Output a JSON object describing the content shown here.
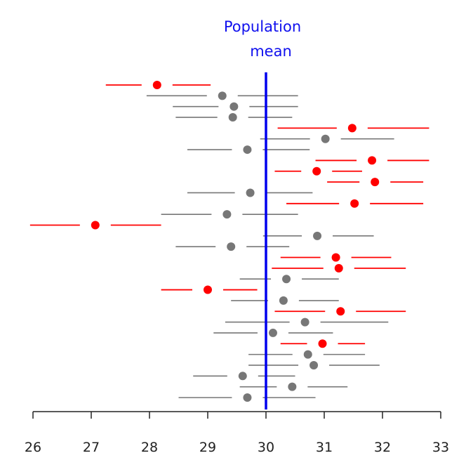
{
  "chart_data": {
    "type": "scatter",
    "annotation": [
      "Population",
      "mean"
    ],
    "reference_line": {
      "x": 30,
      "color": "#0000ee"
    },
    "xlim": [
      26,
      33
    ],
    "xticks": [
      26,
      27,
      28,
      29,
      30,
      31,
      32,
      33
    ],
    "xticklabels": [
      "26",
      "27",
      "28",
      "29",
      "30",
      "31",
      "32",
      "33"
    ],
    "colors": {
      "covers_mean": "#777777",
      "misses_mean": "#ff0000"
    },
    "intervals": [
      {
        "estimate": 28.13,
        "lower": 27.25,
        "upper": 29.05,
        "covers_mean": false
      },
      {
        "estimate": 29.25,
        "lower": 27.95,
        "upper": 30.55,
        "covers_mean": true
      },
      {
        "estimate": 29.45,
        "lower": 28.4,
        "upper": 30.55,
        "covers_mean": true
      },
      {
        "estimate": 29.43,
        "lower": 28.45,
        "upper": 30.45,
        "covers_mean": true
      },
      {
        "estimate": 31.48,
        "lower": 30.2,
        "upper": 32.8,
        "covers_mean": false
      },
      {
        "estimate": 31.02,
        "lower": 29.9,
        "upper": 32.2,
        "covers_mean": true
      },
      {
        "estimate": 29.68,
        "lower": 28.65,
        "upper": 30.75,
        "covers_mean": true
      },
      {
        "estimate": 31.82,
        "lower": 30.85,
        "upper": 32.8,
        "covers_mean": false
      },
      {
        "estimate": 30.87,
        "lower": 30.15,
        "upper": 31.65,
        "covers_mean": false
      },
      {
        "estimate": 31.87,
        "lower": 31.05,
        "upper": 32.7,
        "covers_mean": false
      },
      {
        "estimate": 29.73,
        "lower": 28.65,
        "upper": 30.8,
        "covers_mean": true
      },
      {
        "estimate": 31.52,
        "lower": 30.35,
        "upper": 32.7,
        "covers_mean": false
      },
      {
        "estimate": 29.33,
        "lower": 28.2,
        "upper": 30.55,
        "covers_mean": true
      },
      {
        "estimate": 27.07,
        "lower": 25.95,
        "upper": 28.2,
        "covers_mean": false
      },
      {
        "estimate": 30.88,
        "lower": 29.95,
        "upper": 31.85,
        "covers_mean": true
      },
      {
        "estimate": 29.4,
        "lower": 28.45,
        "upper": 30.4,
        "covers_mean": true
      },
      {
        "estimate": 31.2,
        "lower": 30.25,
        "upper": 32.15,
        "covers_mean": false
      },
      {
        "estimate": 31.25,
        "lower": 30.1,
        "upper": 32.4,
        "covers_mean": false
      },
      {
        "estimate": 30.35,
        "lower": 29.55,
        "upper": 31.25,
        "covers_mean": true
      },
      {
        "estimate": 29.0,
        "lower": 28.2,
        "upper": 29.85,
        "covers_mean": false
      },
      {
        "estimate": 30.3,
        "lower": 29.4,
        "upper": 31.25,
        "covers_mean": true
      },
      {
        "estimate": 31.28,
        "lower": 30.15,
        "upper": 32.4,
        "covers_mean": false
      },
      {
        "estimate": 30.67,
        "lower": 29.3,
        "upper": 32.1,
        "covers_mean": true
      },
      {
        "estimate": 30.12,
        "lower": 29.1,
        "upper": 31.15,
        "covers_mean": true
      },
      {
        "estimate": 30.97,
        "lower": 30.25,
        "upper": 31.7,
        "covers_mean": false
      },
      {
        "estimate": 30.72,
        "lower": 29.7,
        "upper": 31.7,
        "covers_mean": true
      },
      {
        "estimate": 30.82,
        "lower": 29.7,
        "upper": 31.95,
        "covers_mean": true
      },
      {
        "estimate": 29.6,
        "lower": 28.75,
        "upper": 30.5,
        "covers_mean": true
      },
      {
        "estimate": 30.45,
        "lower": 29.55,
        "upper": 31.4,
        "covers_mean": true
      },
      {
        "estimate": 29.68,
        "lower": 28.5,
        "upper": 30.85,
        "covers_mean": true
      }
    ]
  }
}
